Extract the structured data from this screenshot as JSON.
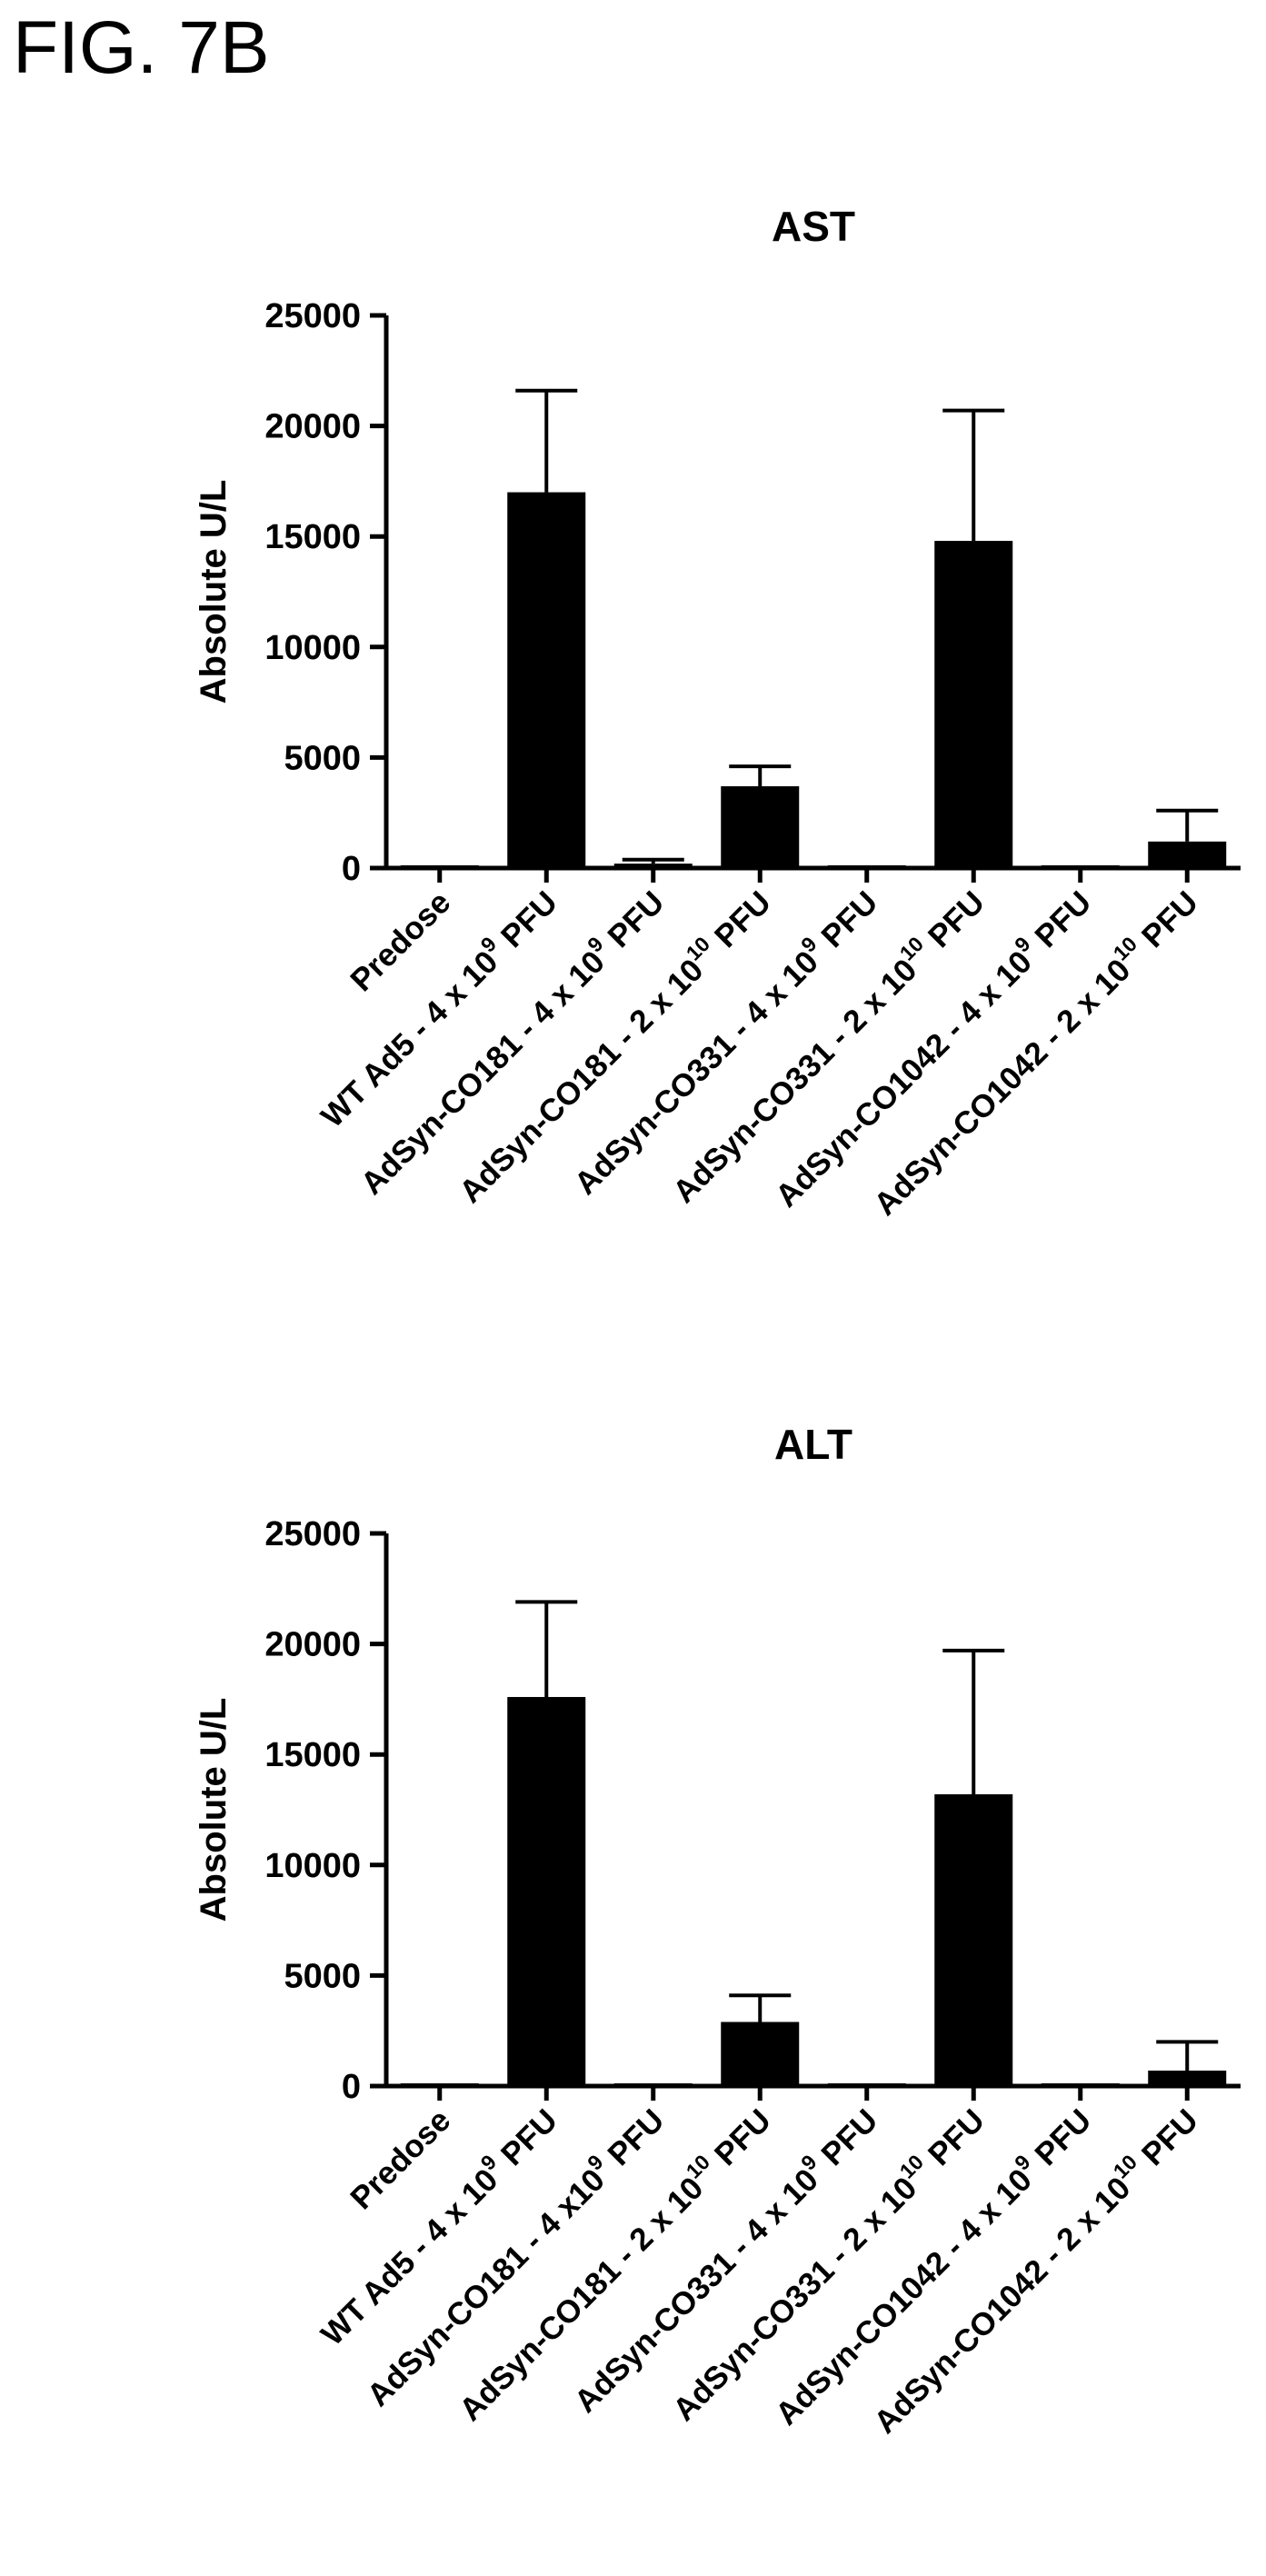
{
  "figure_label": "FIG. 7B",
  "chart_data": [
    {
      "type": "bar",
      "title": "AST",
      "ylabel": "Absolute U/L",
      "xlabel": "",
      "ylim": [
        0,
        25000
      ],
      "yticks": [
        0,
        5000,
        10000,
        15000,
        20000,
        25000
      ],
      "grid": false,
      "categories": [
        {
          "text": "Predose"
        },
        {
          "text": "WT Ad5 - 4 x 10",
          "sup": "9",
          "tail": " PFU"
        },
        {
          "text": "AdSyn-CO181 - 4 x 10",
          "sup": "9",
          "tail": " PFU"
        },
        {
          "text": "AdSyn-CO181 - 2 x 10",
          "sup": "10",
          "tail": " PFU"
        },
        {
          "text": "AdSyn-CO331 - 4 x 10",
          "sup": "9",
          "tail": " PFU"
        },
        {
          "text": "AdSyn-CO331 - 2 x 10",
          "sup": "10",
          "tail": " PFU"
        },
        {
          "text": "AdSyn-CO1042 - 4 x 10",
          "sup": "9",
          "tail": " PFU"
        },
        {
          "text": "AdSyn-CO1042 - 2 x 10",
          "sup": "10",
          "tail": " PFU"
        }
      ],
      "values": [
        80,
        17000,
        200,
        3700,
        80,
        14800,
        80,
        1200
      ],
      "error_upper": [
        100,
        21600,
        380,
        4600,
        110,
        20700,
        110,
        2600
      ]
    },
    {
      "type": "bar",
      "title": "ALT",
      "ylabel": "Absolute U/L",
      "xlabel": "",
      "ylim": [
        0,
        25000
      ],
      "yticks": [
        0,
        5000,
        10000,
        15000,
        20000,
        25000
      ],
      "grid": false,
      "categories": [
        {
          "text": "Predose"
        },
        {
          "text": "WT Ad5 - 4 x 10",
          "sup": "9",
          "tail": " PFU"
        },
        {
          "text": "AdSyn-CO181 - 4 x10",
          "sup": "9",
          "tail": " PFU"
        },
        {
          "text": "AdSyn-CO181 - 2 x 10",
          "sup": "10",
          "tail": " PFU"
        },
        {
          "text": "AdSyn-CO331 - 4 x 10",
          "sup": "9",
          "tail": " PFU"
        },
        {
          "text": "AdSyn-CO331 - 2 x 10",
          "sup": "10",
          "tail": " PFU"
        },
        {
          "text": "AdSyn-CO1042 - 4 x 10",
          "sup": "9",
          "tail": " PFU"
        },
        {
          "text": "AdSyn-CO1042 - 2 x 10",
          "sup": "10",
          "tail": " PFU"
        }
      ],
      "values": [
        20,
        17600,
        60,
        2900,
        50,
        13200,
        20,
        700
      ],
      "error_upper": [
        30,
        21900,
        100,
        4100,
        80,
        19700,
        30,
        2000
      ]
    }
  ]
}
